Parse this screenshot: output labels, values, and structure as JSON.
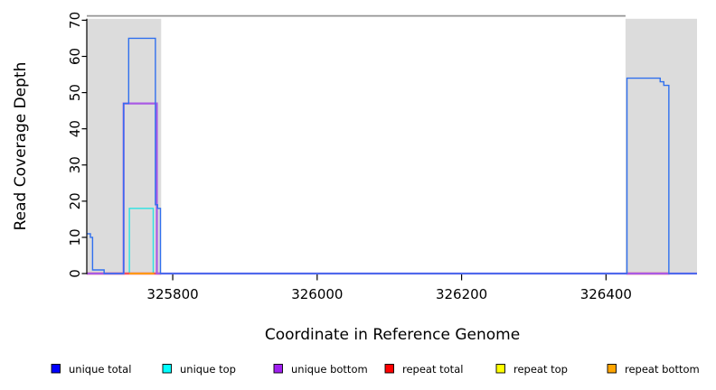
{
  "chart_data": {
    "type": "line",
    "title": "",
    "xlabel": "Coordinate in Reference Genome",
    "ylabel": "Read Coverage Depth",
    "xlim": [
      325681,
      326526
    ],
    "ylim": [
      0,
      70
    ],
    "x_ticks": [
      325800,
      326000,
      326200,
      326400
    ],
    "y_ticks": [
      0,
      10,
      20,
      30,
      40,
      50,
      60,
      70
    ],
    "grid": false,
    "legend_position": "bottom",
    "highlight_regions": {
      "color": "#dcdcdc",
      "ranges": [
        [
          325681,
          325784
        ],
        [
          326427,
          326526
        ]
      ]
    },
    "max_line": {
      "color": "#949494",
      "x": [
        325681,
        326427
      ],
      "y": 71.2
    },
    "series": [
      {
        "name": "unique total",
        "color": "#0000ff",
        "line_color": "#3070ee",
        "width": 1.4,
        "z": 6,
        "segments": [
          [
            325681,
            325686,
            11
          ],
          [
            325686,
            325689,
            10
          ],
          [
            325689,
            325705,
            1
          ],
          [
            325705,
            325732,
            0
          ],
          [
            325732,
            325739,
            47
          ],
          [
            325739,
            325776,
            65
          ],
          [
            325776,
            325779,
            19
          ],
          [
            325779,
            325783,
            18
          ],
          [
            325783,
            326429,
            0
          ],
          [
            326429,
            326475,
            54
          ],
          [
            326475,
            326480,
            53
          ],
          [
            326480,
            326487,
            52
          ],
          [
            326487,
            326526,
            0
          ]
        ]
      },
      {
        "name": "unique top",
        "color": "#00ffff",
        "line_color": "#2ae2e2",
        "width": 1.4,
        "z": 1,
        "segments": [
          [
            325681,
            325740,
            0
          ],
          [
            325740,
            325773,
            18
          ],
          [
            325773,
            326526,
            0
          ]
        ]
      },
      {
        "name": "unique bottom",
        "color": "#a020f0",
        "line_color": "#a95ae4",
        "width": 2.2,
        "z": 5,
        "segments": [
          [
            325681,
            325732,
            0
          ],
          [
            325732,
            325778,
            47
          ],
          [
            325778,
            326526,
            0
          ]
        ]
      },
      {
        "name": "repeat total",
        "color": "#ff0000",
        "line_color": "#f4535c",
        "width": 2.6,
        "z": 2,
        "segments": [
          [
            325681,
            325784,
            0
          ],
          [
            326428,
            326488,
            0
          ]
        ]
      },
      {
        "name": "repeat top",
        "color": "#ffff00",
        "line_color": "#ffee00",
        "width": 1.4,
        "z": 3,
        "segments": [
          [
            325740,
            325774,
            0
          ]
        ]
      },
      {
        "name": "repeat bottom",
        "color": "#ffa500",
        "line_color": "#ff9800",
        "width": 1.8,
        "z": 4,
        "segments": [
          [
            325740,
            325774,
            0
          ]
        ]
      }
    ],
    "legend": {
      "items": [
        {
          "label": "unique total",
          "color": "#0000ff"
        },
        {
          "label": "unique top",
          "color": "#00ffff"
        },
        {
          "label": "unique bottom",
          "color": "#a020f0"
        },
        {
          "label": "repeat total",
          "color": "#ff0000"
        },
        {
          "label": "repeat top",
          "color": "#ffff00"
        },
        {
          "label": "repeat bottom",
          "color": "#ffa500"
        }
      ]
    }
  }
}
